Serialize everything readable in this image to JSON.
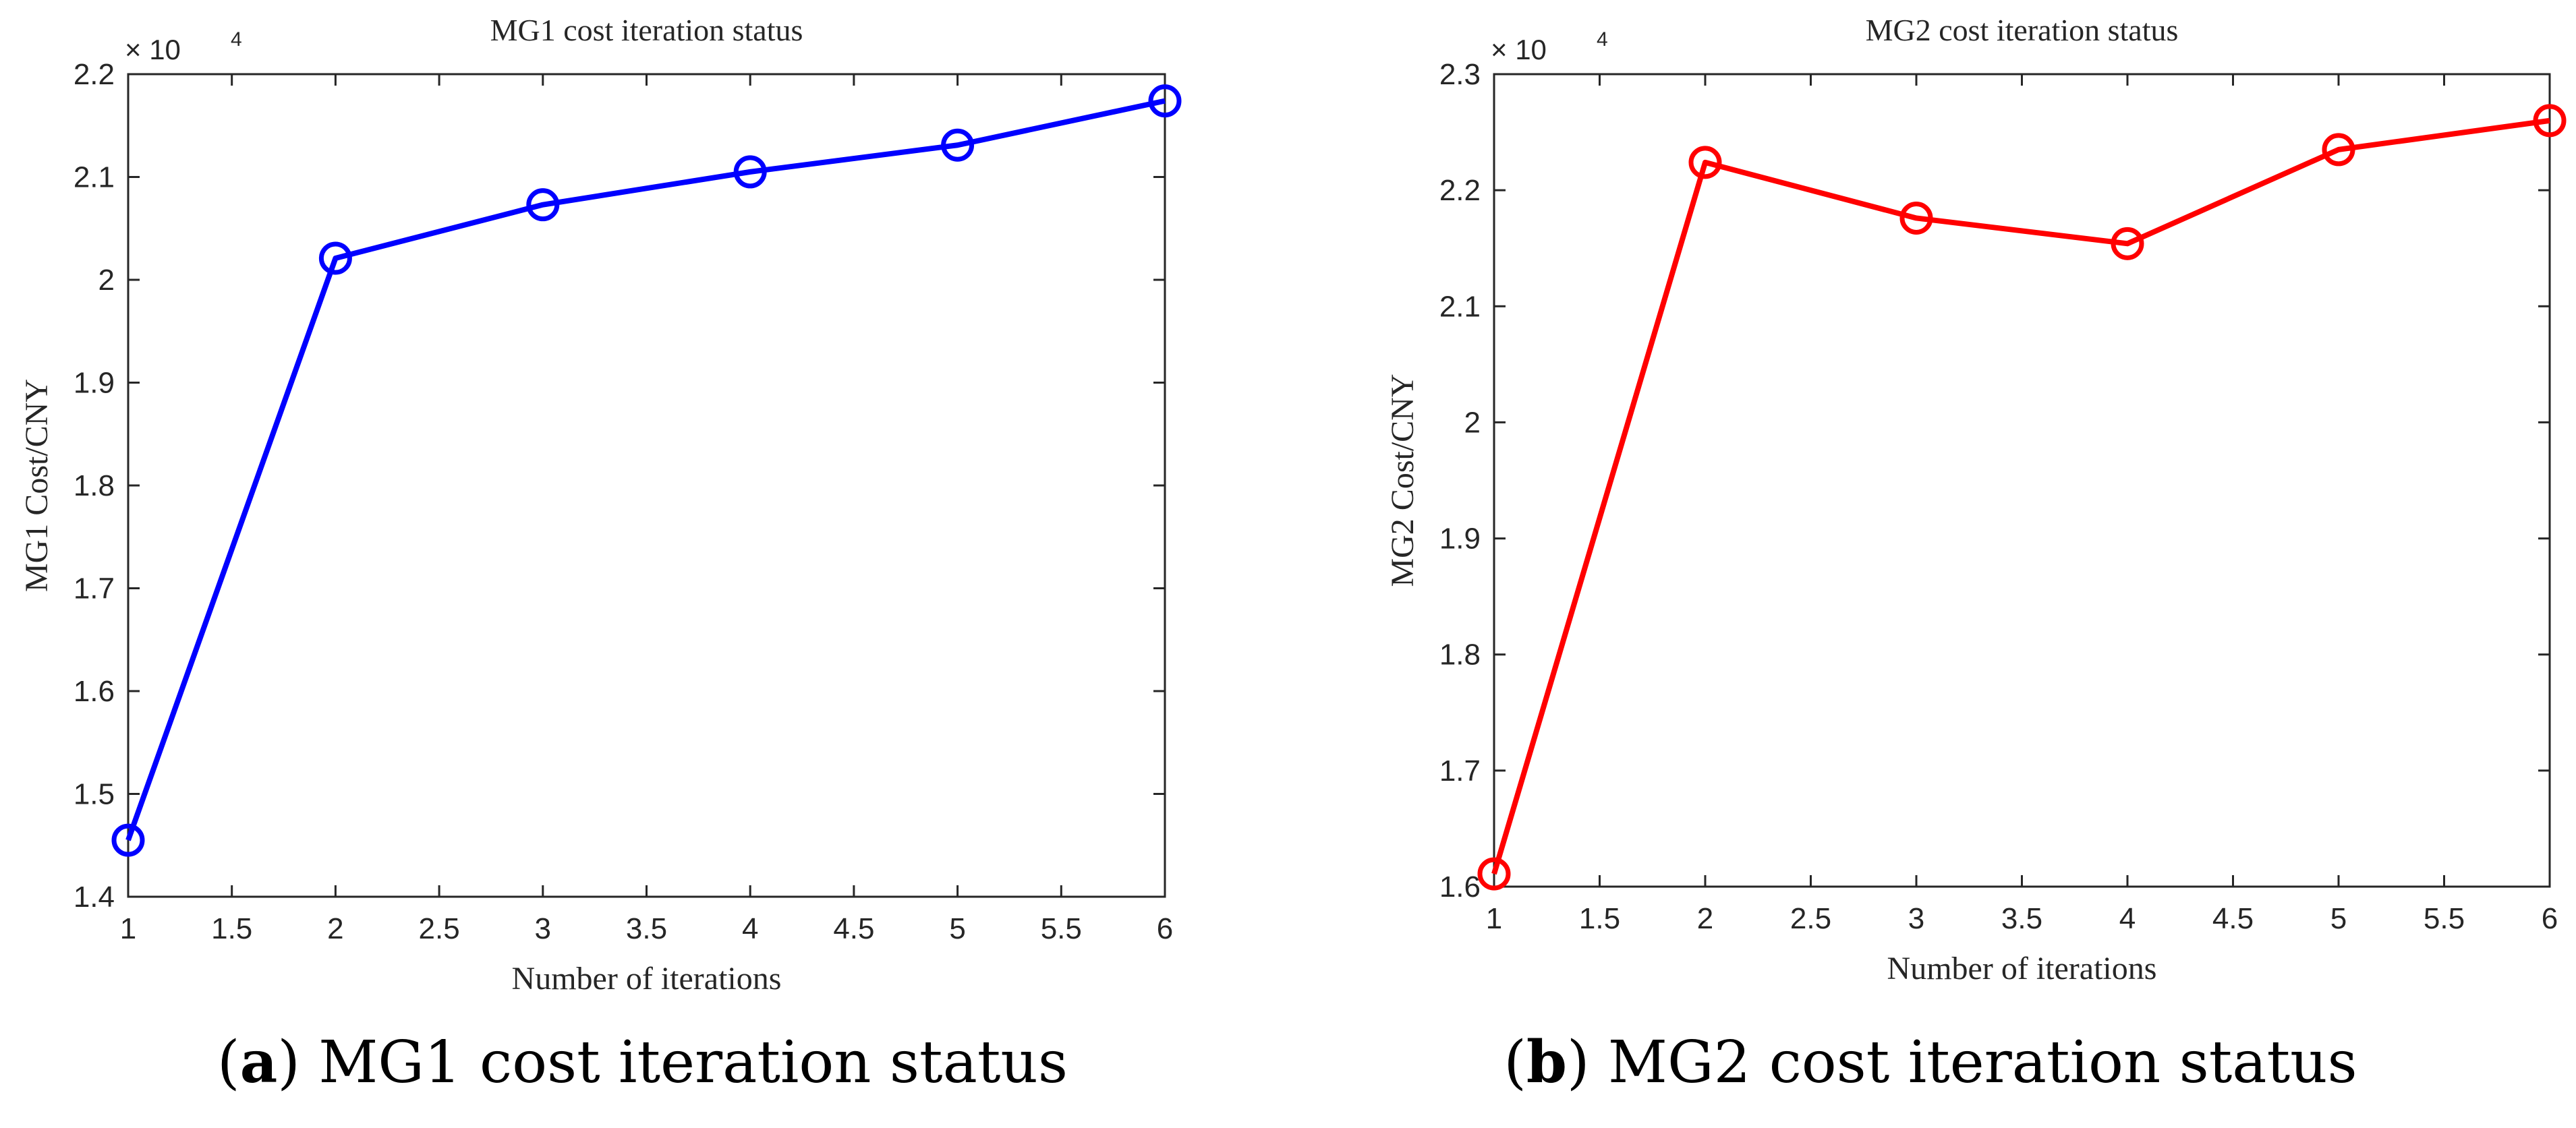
{
  "charts": [
    {
      "caption_letter": "a",
      "caption_text": "MG1 cost iteration status",
      "exponent_label": "× 10",
      "exponent_power": "4",
      "chart_data": {
        "type": "line",
        "title": "MG1 cost iteration status",
        "xlabel": "Number of iterations",
        "ylabel": "MG1 Cost/CNY",
        "x": [
          1,
          2,
          3,
          4,
          5,
          6
        ],
        "series": [
          {
            "name": "MG1 cost",
            "values": [
              1.455,
              2.021,
              2.073,
              2.105,
              2.131,
              2.174
            ],
            "color": "#0000ff",
            "marker": "circle"
          }
        ],
        "xlim": [
          1,
          6
        ],
        "ylim": [
          1.4,
          2.2
        ],
        "xticks": [
          1,
          1.5,
          2,
          2.5,
          3,
          3.5,
          4,
          4.5,
          5,
          5.5,
          6
        ],
        "xtick_labels": [
          "1",
          "1.5",
          "2",
          "2.5",
          "3",
          "3.5",
          "4",
          "4.5",
          "5",
          "5.5",
          "6"
        ],
        "yticks": [
          1.4,
          1.5,
          1.6,
          1.7,
          1.8,
          1.9,
          2,
          2.1,
          2.2
        ],
        "ytick_labels": [
          "1.4",
          "1.5",
          "1.6",
          "1.7",
          "1.8",
          "1.9",
          "2",
          "2.1",
          "2.2"
        ],
        "y_multiplier": "× 10^4",
        "grid": false
      }
    },
    {
      "caption_letter": "b",
      "caption_text": "MG2 cost iteration status",
      "exponent_label": "× 10",
      "exponent_power": "4",
      "chart_data": {
        "type": "line",
        "title": "MG2 cost iteration status",
        "xlabel": "Number of iterations",
        "ylabel": "MG2 Cost/CNY",
        "x": [
          1,
          2,
          3,
          4,
          5,
          6
        ],
        "series": [
          {
            "name": "MG2 cost",
            "values": [
              1.611,
              2.224,
              2.176,
              2.154,
              2.235,
              2.26
            ],
            "color": "#ff0000",
            "marker": "circle"
          }
        ],
        "xlim": [
          1,
          6
        ],
        "ylim": [
          1.6,
          2.3
        ],
        "xticks": [
          1,
          1.5,
          2,
          2.5,
          3,
          3.5,
          4,
          4.5,
          5,
          5.5,
          6
        ],
        "xtick_labels": [
          "1",
          "1.5",
          "2",
          "2.5",
          "3",
          "3.5",
          "4",
          "4.5",
          "5",
          "5.5",
          "6"
        ],
        "yticks": [
          1.6,
          1.7,
          1.8,
          1.9,
          2,
          2.1,
          2.2,
          2.3
        ],
        "ytick_labels": [
          "1.6",
          "1.7",
          "1.8",
          "1.9",
          "2",
          "2.1",
          "2.2",
          "2.3"
        ],
        "y_multiplier": "× 10^4",
        "grid": false
      }
    }
  ]
}
